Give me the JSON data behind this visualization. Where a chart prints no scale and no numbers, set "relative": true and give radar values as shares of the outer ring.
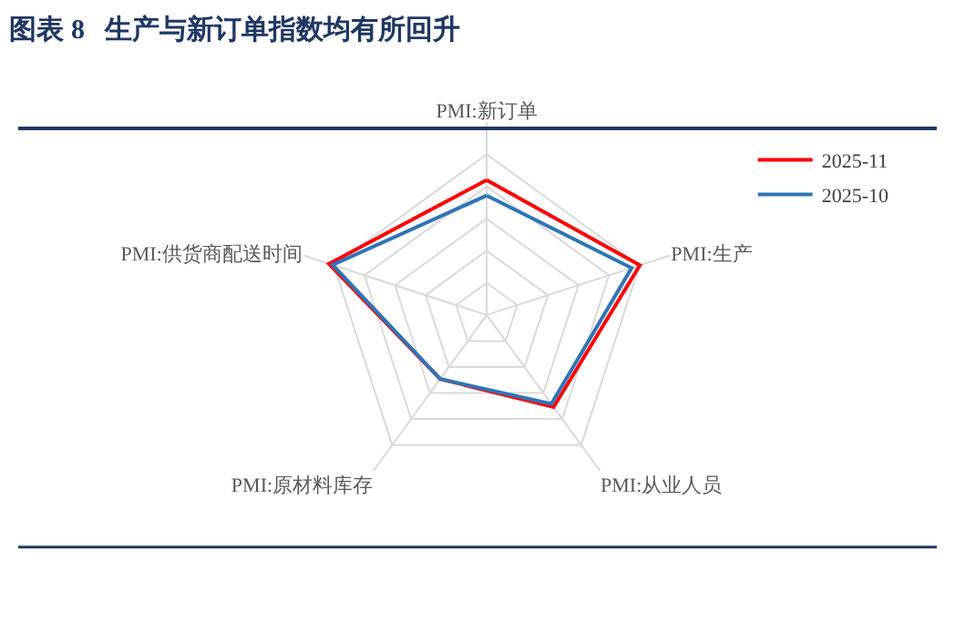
{
  "chart_data": {
    "type": "radar",
    "title": "图表 8   生产与新订单指数均有所回升",
    "relative": true,
    "legend": "top right",
    "categories": [
      "PMI:新订单",
      "PMI:生产",
      "PMI:从业人员",
      "PMI:原材料库存",
      "PMI:供货商配送时间"
    ],
    "series": [
      {
        "name": "2025-11",
        "color": "#ff0000",
        "values": [
          0.7,
          0.835,
          0.59,
          0.41,
          0.86
        ]
      },
      {
        "name": "2025-10",
        "color": "#2e75b6",
        "values": [
          0.62,
          0.79,
          0.57,
          0.41,
          0.84
        ]
      }
    ]
  }
}
